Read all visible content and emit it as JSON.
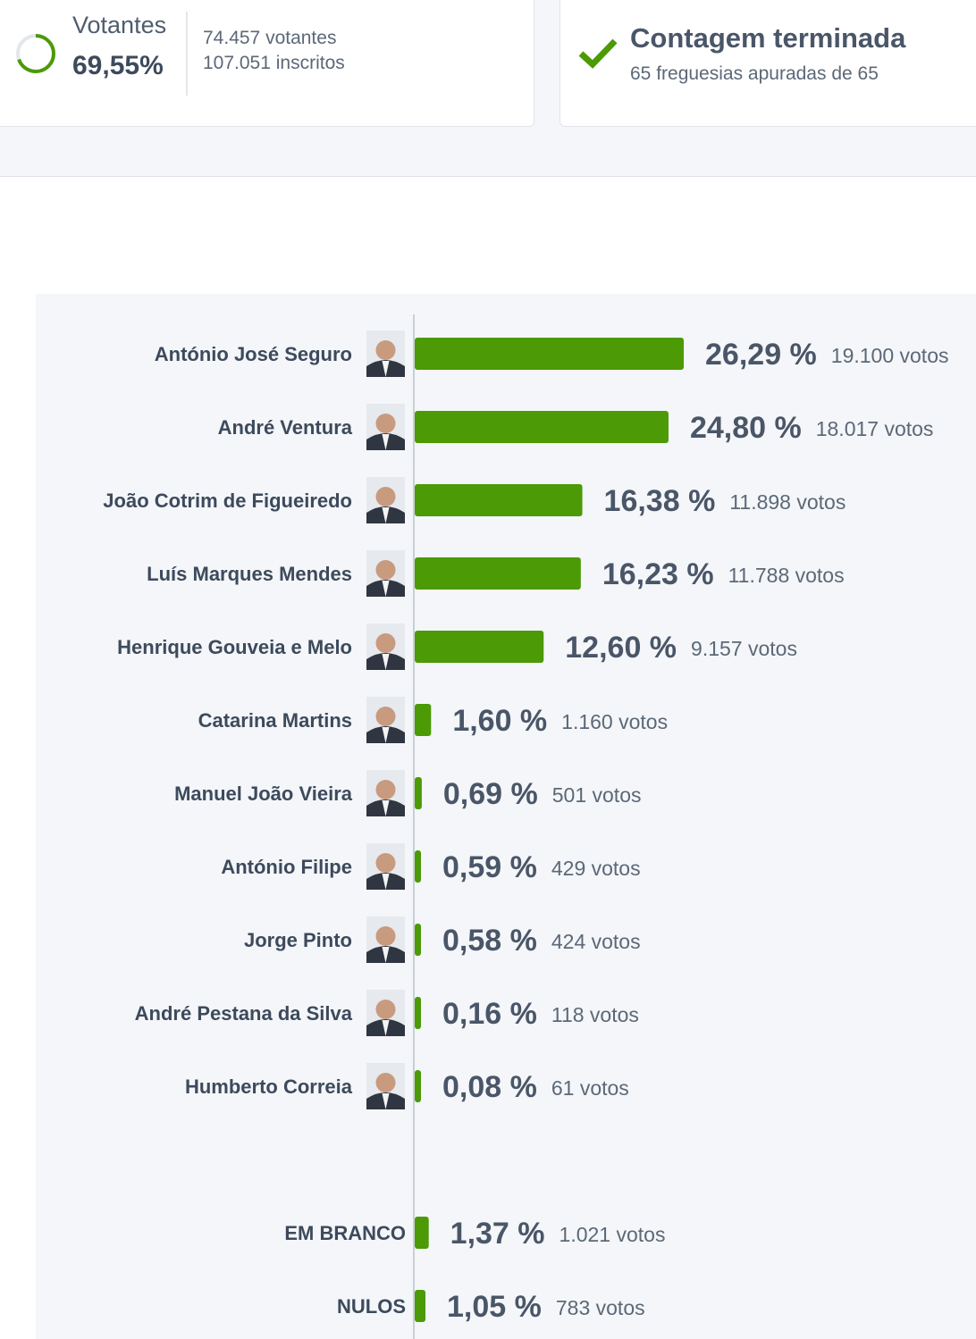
{
  "turnout": {
    "label": "Votantes",
    "percent": "69,55%",
    "fraction": 0.6955,
    "voters": "74.457 votantes",
    "registered": "107.051 inscritos"
  },
  "count_status": {
    "title": "Contagem terminada",
    "subtitle": "65 freguesias apuradas de 65"
  },
  "colors": {
    "bar": "#4b9a06",
    "accent": "#4b9a06"
  },
  "chart_data": {
    "type": "bar",
    "orientation": "horizontal",
    "candidates": [
      {
        "name": "António José Seguro",
        "value": 26.29,
        "pct_label": "26,29 %",
        "votes_label": "19.100 votos"
      },
      {
        "name": "André Ventura",
        "value": 24.8,
        "pct_label": "24,80 %",
        "votes_label": "18.017 votos"
      },
      {
        "name": "João Cotrim de Figueiredo",
        "value": 16.38,
        "pct_label": "16,38 %",
        "votes_label": "11.898 votos"
      },
      {
        "name": "Luís Marques Mendes",
        "value": 16.23,
        "pct_label": "16,23 %",
        "votes_label": "11.788 votos"
      },
      {
        "name": "Henrique Gouveia e Melo",
        "value": 12.6,
        "pct_label": "12,60 %",
        "votes_label": "9.157 votos"
      },
      {
        "name": "Catarina Martins",
        "value": 1.6,
        "pct_label": "1,60 %",
        "votes_label": "1.160 votos"
      },
      {
        "name": "Manuel João Vieira",
        "value": 0.69,
        "pct_label": "0,69 %",
        "votes_label": "501 votos"
      },
      {
        "name": "António Filipe",
        "value": 0.59,
        "pct_label": "0,59 %",
        "votes_label": "429 votos"
      },
      {
        "name": "Jorge Pinto",
        "value": 0.58,
        "pct_label": "0,58 %",
        "votes_label": "424 votos"
      },
      {
        "name": "André Pestana da Silva",
        "value": 0.16,
        "pct_label": "0,16 %",
        "votes_label": "118 votos"
      },
      {
        "name": "Humberto Correia",
        "value": 0.08,
        "pct_label": "0,08 %",
        "votes_label": "61 votos"
      }
    ],
    "other": [
      {
        "name": "EM BRANCO",
        "value": 1.37,
        "pct_label": "1,37 %",
        "votes_label": "1.021 votos"
      },
      {
        "name": "NULOS",
        "value": 1.05,
        "pct_label": "1,05 %",
        "votes_label": "783 votos"
      }
    ]
  }
}
